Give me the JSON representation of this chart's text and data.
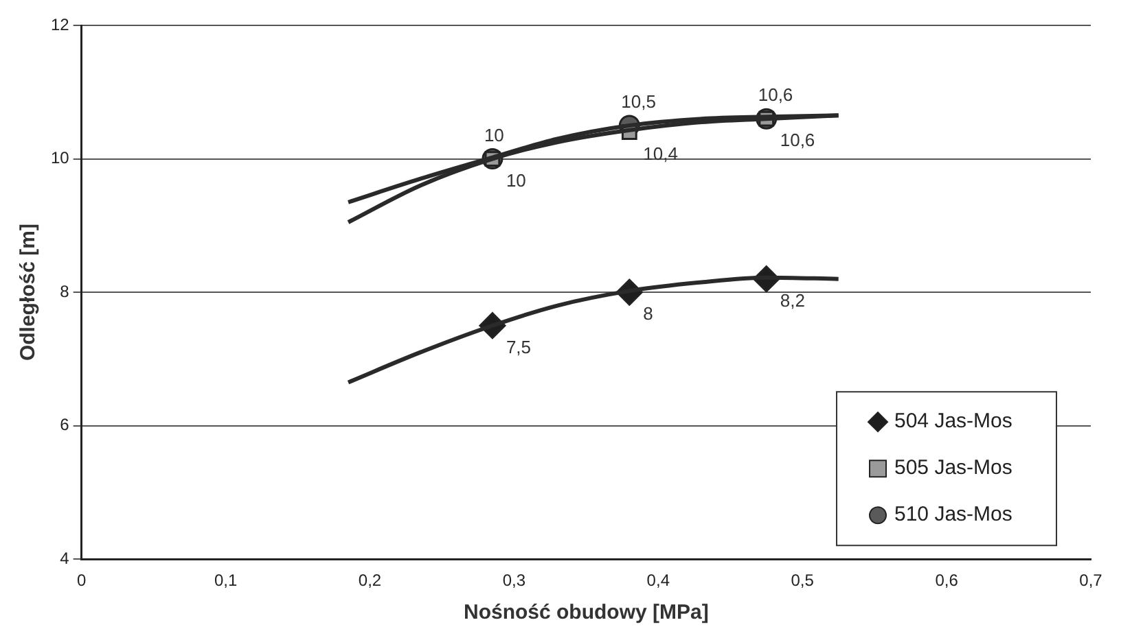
{
  "chart_data": {
    "type": "scatter",
    "xlabel": "Nośność obudowy [MPa]",
    "ylabel": "Odległość [m]",
    "xlim": [
      0,
      0.7
    ],
    "xticks": [
      0,
      {
        "value": 0.1,
        "label": "0,1"
      },
      {
        "value": 0.2,
        "label": "0,2"
      },
      {
        "value": 0.3,
        "label": "0,3"
      },
      {
        "value": 0.4,
        "label": "0,4"
      },
      {
        "value": 0.5,
        "label": "0,5"
      },
      {
        "value": 0.6,
        "label": "0,6"
      },
      {
        "value": 0.7,
        "label": "0,7"
      }
    ],
    "ylim": [
      4,
      12
    ],
    "yticks": [
      4,
      6,
      8,
      10,
      12
    ],
    "grid": "y",
    "legend": "bottom right",
    "series": [
      {
        "type": "line",
        "marker": "none",
        "color": "#2a2a2a",
        "x": [
          0.185,
          0.235,
          0.285,
          0.33,
          0.38,
          0.43,
          0.475,
          0.525
        ],
        "values": [
          6.65,
          7.1,
          7.5,
          7.8,
          8.02,
          8.15,
          8.22,
          8.2
        ]
      },
      {
        "type": "line",
        "marker": "none",
        "color": "#2a2a2a",
        "x": [
          0.185,
          0.235,
          0.285,
          0.33,
          0.38,
          0.43,
          0.475,
          0.525
        ],
        "values": [
          9.05,
          9.6,
          10,
          10.25,
          10.43,
          10.55,
          10.6,
          10.65
        ]
      },
      {
        "type": "line",
        "marker": "none",
        "color": "#2a2a2a",
        "x": [
          0.185,
          0.235,
          0.285,
          0.33,
          0.38,
          0.43,
          0.475,
          0.525
        ],
        "values": [
          9.35,
          9.7,
          10.02,
          10.3,
          10.5,
          10.6,
          10.63,
          10.65
        ]
      },
      {
        "name": "504 Jas-Mos",
        "marker": "diamond",
        "color": "#1e1e1e",
        "x": [
          0.285,
          0.38,
          0.475
        ],
        "values": [
          7.5,
          8,
          8.2
        ],
        "value_labels": [
          "7,5",
          "8",
          "8,2"
        ]
      },
      {
        "name": "505 Jas-Mos",
        "marker": "square",
        "color": "#9a9a9a",
        "x": [
          0.285,
          0.38,
          0.475
        ],
        "values": [
          10,
          10.4,
          10.6
        ],
        "value_labels": [
          "10",
          "10,4",
          "10,6"
        ]
      },
      {
        "name": "510 Jas-Mos",
        "marker": "circle",
        "color": "#5a5a5a",
        "x": [
          0.285,
          0.38,
          0.475
        ],
        "values": [
          10,
          10.5,
          10.6
        ],
        "value_labels": [
          "10",
          "10,5",
          "10,6"
        ]
      }
    ]
  }
}
